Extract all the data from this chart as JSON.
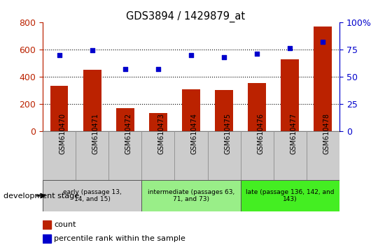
{
  "title": "GDS3894 / 1429879_at",
  "samples": [
    "GSM610470",
    "GSM610471",
    "GSM610472",
    "GSM610473",
    "GSM610474",
    "GSM610475",
    "GSM610476",
    "GSM610477",
    "GSM610478"
  ],
  "counts": [
    330,
    450,
    165,
    130,
    305,
    300,
    355,
    525,
    770
  ],
  "percentile_ranks": [
    70,
    74,
    57,
    57,
    70,
    68,
    71,
    76,
    82
  ],
  "ylim_left": [
    0,
    800
  ],
  "ylim_right": [
    0,
    100
  ],
  "yticks_left": [
    0,
    200,
    400,
    600,
    800
  ],
  "yticks_right": [
    0,
    25,
    50,
    75,
    100
  ],
  "bar_color": "#bb2200",
  "dot_color": "#0000cc",
  "bg_color": "#ffffff",
  "stage_groups": [
    {
      "label": "early (passage 13,\n14, and 15)",
      "start": 0,
      "end": 3,
      "color": "#cccccc"
    },
    {
      "label": "intermediate (passages 63,\n71, and 73)",
      "start": 3,
      "end": 6,
      "color": "#99ee88"
    },
    {
      "label": "late (passage 136, 142, and\n143)",
      "start": 6,
      "end": 9,
      "color": "#44ee22"
    }
  ],
  "dev_stage_label": "development stage",
  "legend_count_label": "count",
  "legend_pct_label": "percentile rank within the sample"
}
